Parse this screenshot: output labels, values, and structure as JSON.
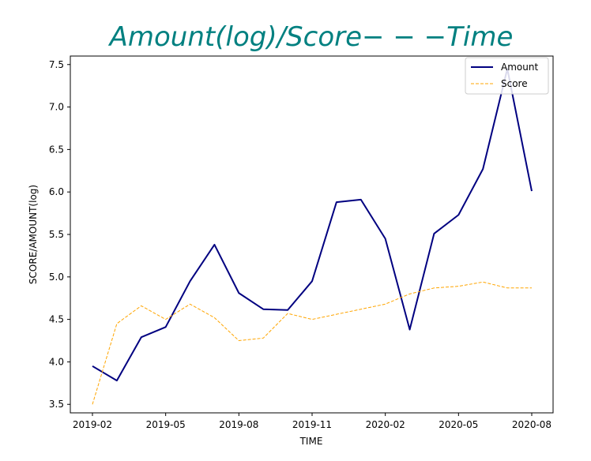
{
  "chart_data": {
    "type": "line",
    "title": "Amount(log)/Score− − −Time",
    "title_color": "#008080",
    "xlabel": "TIME",
    "ylabel": "SCORE/AMOUNT(log)",
    "x": [
      "2019-02",
      "2019-03",
      "2019-04",
      "2019-05",
      "2019-06",
      "2019-07",
      "2019-08",
      "2019-09",
      "2019-10",
      "2019-11",
      "2019-12",
      "2020-01",
      "2020-02",
      "2020-03",
      "2020-04",
      "2020-05",
      "2020-06",
      "2020-07",
      "2020-08"
    ],
    "x_ticks": [
      "2019-02",
      "2019-05",
      "2019-08",
      "2019-11",
      "2020-02",
      "2020-05",
      "2020-08"
    ],
    "ylim": [
      3.4,
      7.6
    ],
    "y_ticks": [
      3.5,
      4.0,
      4.5,
      5.0,
      5.5,
      6.0,
      6.5,
      7.0,
      7.5
    ],
    "grid": false,
    "legend_position": "top-right",
    "series": [
      {
        "name": "Amount",
        "color": "#000080",
        "style": "solid",
        "values": [
          3.95,
          3.78,
          4.29,
          4.41,
          4.95,
          5.38,
          4.81,
          4.62,
          4.61,
          4.95,
          5.88,
          5.91,
          5.45,
          4.38,
          5.51,
          5.73,
          6.27,
          7.45,
          6.01
        ]
      },
      {
        "name": "Score",
        "color": "#FFA500",
        "style": "dashed",
        "values": [
          3.5,
          4.45,
          4.66,
          4.5,
          4.68,
          4.52,
          4.25,
          4.28,
          4.57,
          4.5,
          4.56,
          4.62,
          4.68,
          4.8,
          4.87,
          4.89,
          4.94,
          4.87,
          4.87
        ]
      }
    ]
  }
}
